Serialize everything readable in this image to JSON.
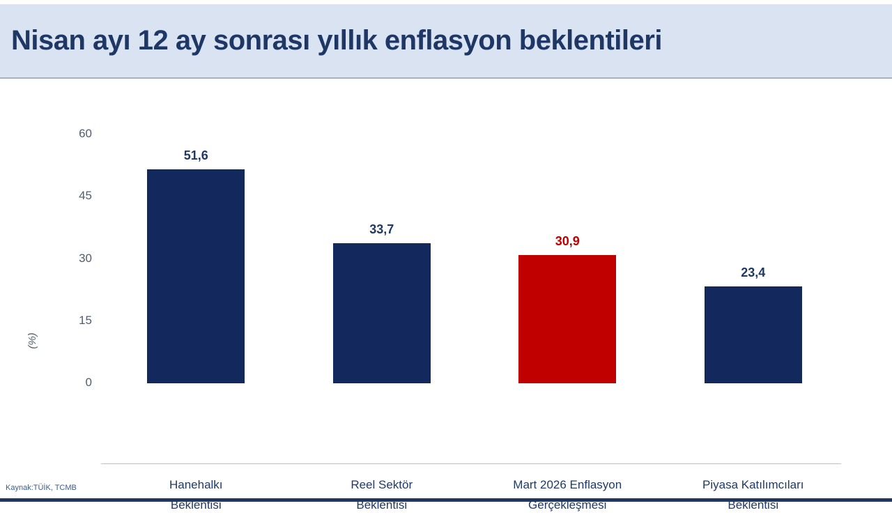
{
  "header": {
    "title": "Nisan ayı 12 ay sonrası yıllık enflasyon beklentileri"
  },
  "footer": {
    "source_note": "Kaynak:TÜİK, TCMB"
  },
  "colors": {
    "banner_bg": "#dae3f1",
    "banner_border": "#a9b1bf",
    "title_text": "#1e3765",
    "bar_navy": "#13295e",
    "bar_red": "#c00000",
    "tick_text": "#515d6e",
    "category_text": "#203a66",
    "axis_line": "#bfbfbf",
    "footer_bar": "#1e3765",
    "source_text": "#3c5a8f"
  },
  "chart_data": {
    "type": "bar",
    "title": "Nisan ayı 12 ay sonrası yıllık enflasyon beklentileri",
    "categories": [
      "Hanehalkı\nBeklentisi",
      "Reel Sektör\nBeklentisi",
      "Mart 2026 Enflasyon\nGerçekleşmesi",
      "Piyasa Katılımcıları\nBeklentisi"
    ],
    "values": [
      51.6,
      33.7,
      30.9,
      23.4
    ],
    "value_labels": [
      "51,6",
      "33,7",
      "30,9",
      "23,4"
    ],
    "bar_colors": [
      "#13295e",
      "#13295e",
      "#c00000",
      "#13295e"
    ],
    "value_label_colors": [
      "#1f3864",
      "#1f3864",
      "#c00000",
      "#1f3864"
    ],
    "xlabel": "",
    "ylabel": "(%)",
    "ylim": [
      0,
      60
    ],
    "yticks": [
      0,
      15,
      30,
      45,
      60
    ],
    "grid": false,
    "legend": false
  }
}
